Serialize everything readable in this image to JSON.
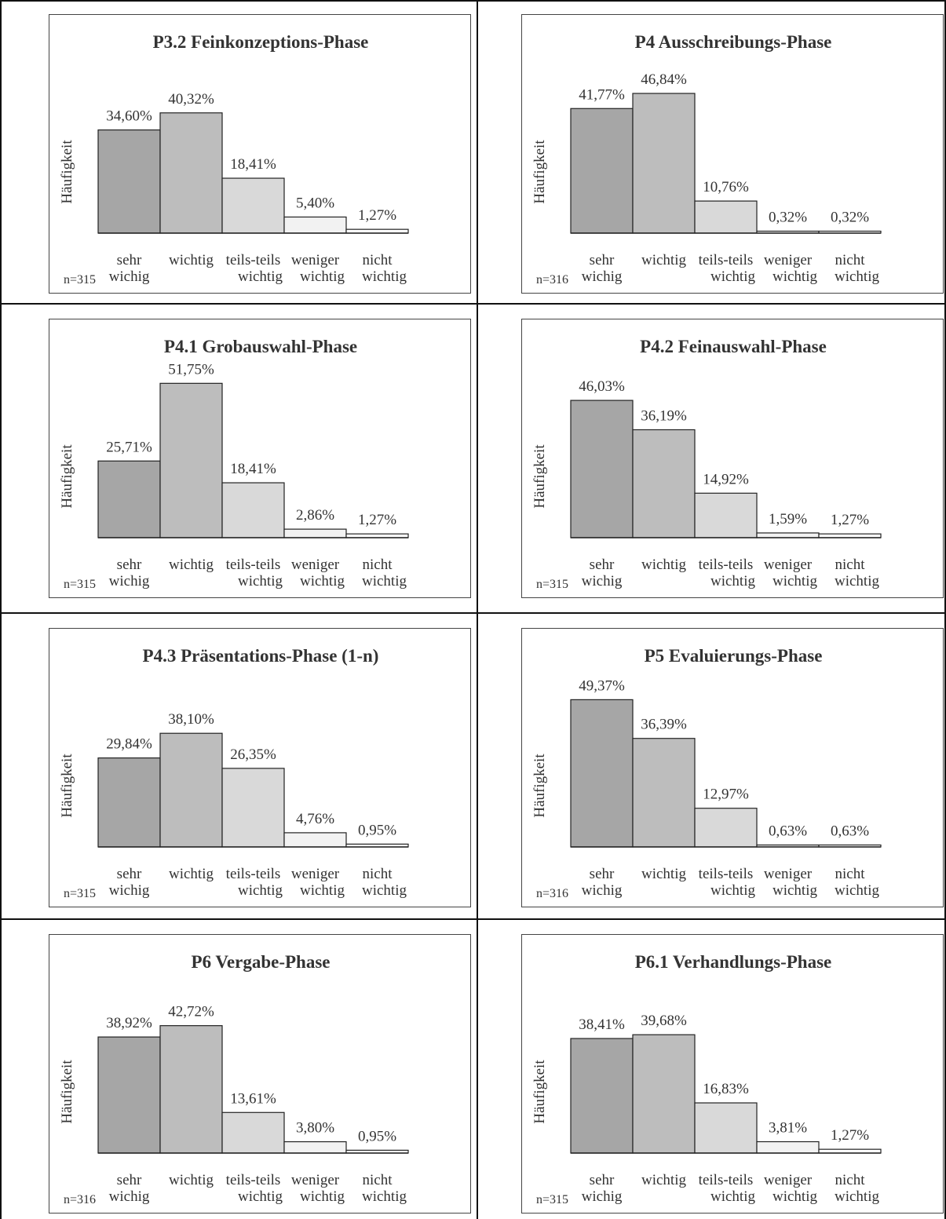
{
  "chart_data": [
    {
      "type": "bar",
      "title": "P3.2 Feinkonzeptions-Phase",
      "ylabel": "Häufigkeit",
      "n": "n=315",
      "categories": [
        "sehr wichig",
        "wichtig",
        "teils-teils wichtig",
        "weniger wichtig",
        "nicht wichtig"
      ],
      "values": [
        34.6,
        40.32,
        18.41,
        5.4,
        1.27
      ],
      "labels": [
        "34,60%",
        "40,32%",
        "18,41%",
        "5,40%",
        "1,27%"
      ],
      "ylim": [
        0,
        60
      ]
    },
    {
      "type": "bar",
      "title": "P4 Ausschreibungs-Phase",
      "ylabel": "Häufigkeit",
      "n": "n=316",
      "categories": [
        "sehr wichig",
        "wichtig",
        "teils-teils wichtig",
        "weniger wichtig",
        "nicht wichtig"
      ],
      "values": [
        41.77,
        46.84,
        10.76,
        0.32,
        0.32
      ],
      "labels": [
        "41,77%",
        "46,84%",
        "10,76%",
        "0,32%",
        "0,32%"
      ],
      "ylim": [
        0,
        60
      ]
    },
    {
      "type": "bar",
      "title": "P4.1 Grobauswahl-Phase",
      "ylabel": "Häufigkeit",
      "n": "n=315",
      "categories": [
        "sehr wichig",
        "wichtig",
        "teils-teils wichtig",
        "weniger wichtig",
        "nicht wichtig"
      ],
      "values": [
        25.71,
        51.75,
        18.41,
        2.86,
        1.27
      ],
      "labels": [
        "25,71%",
        "51,75%",
        "18,41%",
        "2,86%",
        "1,27%"
      ],
      "ylim": [
        0,
        60
      ]
    },
    {
      "type": "bar",
      "title": "P4.2 Feinauswahl-Phase",
      "ylabel": "Häufigkeit",
      "n": "n=315",
      "categories": [
        "sehr wichig",
        "wichtig",
        "teils-teils wichtig",
        "weniger wichtig",
        "nicht wichtig"
      ],
      "values": [
        46.03,
        36.19,
        14.92,
        1.59,
        1.27
      ],
      "labels": [
        "46,03%",
        "36,19%",
        "14,92%",
        "1,59%",
        "1,27%"
      ],
      "ylim": [
        0,
        60
      ]
    },
    {
      "type": "bar",
      "title": "P4.3 Präsentations-Phase (1-n)",
      "ylabel": "Häufigkeit",
      "n": "n=315",
      "categories": [
        "sehr wichig",
        "wichtig",
        "teils-teils wichtig",
        "weniger wichtig",
        "nicht wichtig"
      ],
      "values": [
        29.84,
        38.1,
        26.35,
        4.76,
        0.95
      ],
      "labels": [
        "29,84%",
        "38,10%",
        "26,35%",
        "4,76%",
        "0,95%"
      ],
      "ylim": [
        0,
        60
      ]
    },
    {
      "type": "bar",
      "title": "P5 Evaluierungs-Phase",
      "ylabel": "Häufigkeit",
      "n": "n=316",
      "categories": [
        "sehr wichig",
        "wichtig",
        "teils-teils wichtig",
        "weniger wichtig",
        "nicht wichtig"
      ],
      "values": [
        49.37,
        36.39,
        12.97,
        0.63,
        0.63
      ],
      "labels": [
        "49,37%",
        "36,39%",
        "12,97%",
        "0,63%",
        "0,63%"
      ],
      "ylim": [
        0,
        60
      ]
    },
    {
      "type": "bar",
      "title": "P6 Vergabe-Phase",
      "ylabel": "Häufigkeit",
      "n": "n=316",
      "categories": [
        "sehr wichig",
        "wichtig",
        "teils-teils wichtig",
        "weniger wichtig",
        "nicht wichtig"
      ],
      "values": [
        38.92,
        42.72,
        13.61,
        3.8,
        0.95
      ],
      "labels": [
        "38,92%",
        "42,72%",
        "13,61%",
        "3,80%",
        "0,95%"
      ],
      "ylim": [
        0,
        60
      ]
    },
    {
      "type": "bar",
      "title": "P6.1 Verhandlungs-Phase",
      "ylabel": "Häufigkeit",
      "n": "n=315",
      "categories": [
        "sehr wichig",
        "wichtig",
        "teils-teils wichtig",
        "weniger wichtig",
        "nicht wichtig"
      ],
      "values": [
        38.41,
        39.68,
        16.83,
        3.81,
        1.27
      ],
      "labels": [
        "38,41%",
        "39,68%",
        "16,83%",
        "3,81%",
        "1,27%"
      ],
      "ylim": [
        0,
        60
      ]
    }
  ],
  "category_lines": [
    [
      "sehr",
      "wichig"
    ],
    [
      "wichtig",
      ""
    ],
    [
      "teils-teils",
      "wichtig"
    ],
    [
      "weniger",
      "wichtig"
    ],
    [
      "nicht",
      "wichtig"
    ]
  ],
  "colors": [
    "#a6a6a6",
    "#bdbdbd",
    "#d9d9d9",
    "#f2f2f2",
    "#ffffff"
  ]
}
